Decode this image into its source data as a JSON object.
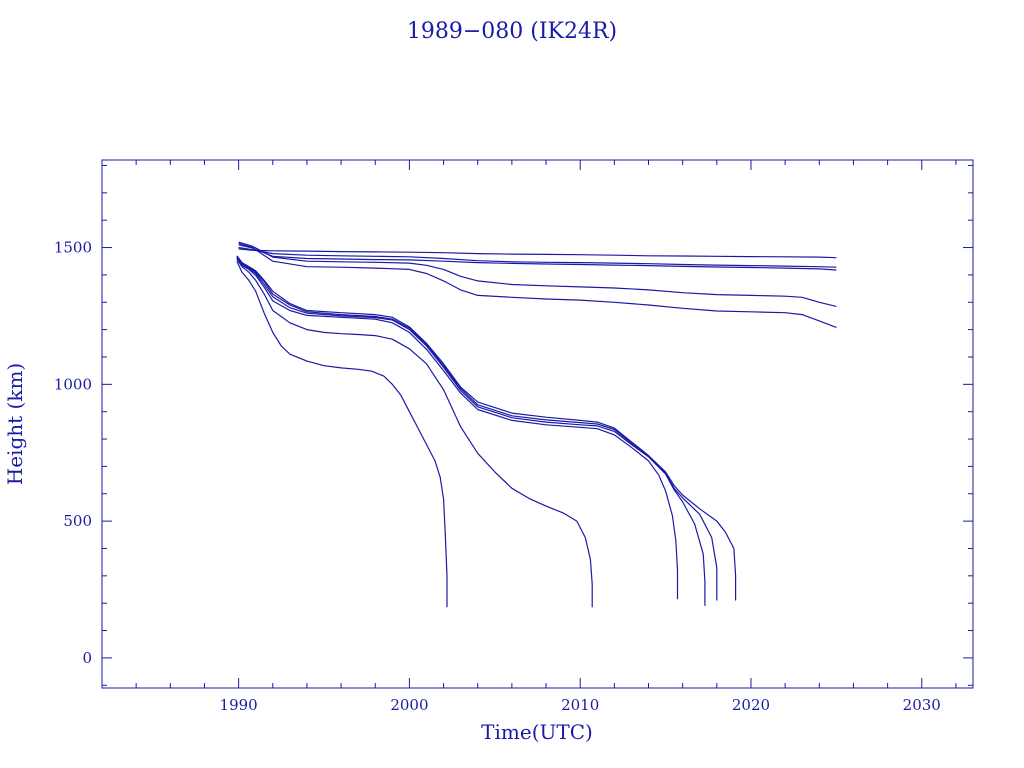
{
  "chart_data": {
    "type": "line",
    "title": "1989−080 (IK24R)",
    "xlabel": "Time(UTC)",
    "ylabel": "Height (km)",
    "xlim": [
      1982,
      2033
    ],
    "ylim": [
      -110,
      1820
    ],
    "x_ticks": [
      1990,
      2000,
      2010,
      2020,
      2030
    ],
    "y_ticks": [
      0,
      500,
      1000,
      1500
    ],
    "grid": false,
    "color": "#1a1aa6",
    "series": [
      {
        "x": [
          1990.0,
          1990.8,
          1992.0,
          1994.0,
          1996.0,
          1998.0,
          2000.0,
          2002.0,
          2004.0,
          2006.0,
          2008.0,
          2010.0,
          2012.0,
          2014.0,
          2016.0,
          2018.0,
          2020.0,
          2022.0,
          2024.0,
          2025.0
        ],
        "values": [
          1495,
          1490,
          1488,
          1487,
          1485,
          1484,
          1483,
          1481,
          1478,
          1476,
          1475,
          1474,
          1472,
          1470,
          1469,
          1468,
          1467,
          1466,
          1465,
          1463
        ]
      },
      {
        "x": [
          1990.0,
          1990.8,
          1992.0,
          1994.0,
          1996.0,
          1998.0,
          2000.0,
          2002.0,
          2004.0,
          2006.0,
          2008.0,
          2010.0,
          2012.0,
          2014.0,
          2016.0,
          2018.0,
          2020.0,
          2022.0,
          2024.0,
          2025.0
        ],
        "values": [
          1500,
          1492,
          1478,
          1472,
          1470,
          1468,
          1466,
          1460,
          1452,
          1448,
          1446,
          1445,
          1443,
          1441,
          1438,
          1436,
          1434,
          1432,
          1430,
          1428
        ]
      },
      {
        "x": [
          1990.0,
          1990.8,
          1992.0,
          1994.0,
          1996.0,
          1998.0,
          2000.0,
          2002.0,
          2004.0,
          2006.0,
          2008.0,
          2010.0,
          2012.0,
          2014.0,
          2016.0,
          2018.0,
          2020.0,
          2022.0,
          2024.0,
          2025.0
        ],
        "values": [
          1510,
          1498,
          1468,
          1460,
          1458,
          1456,
          1455,
          1450,
          1445,
          1442,
          1440,
          1438,
          1436,
          1434,
          1431,
          1429,
          1427,
          1425,
          1422,
          1418
        ]
      },
      {
        "x": [
          1990.0,
          1990.8,
          1992.0,
          1994.0,
          1996.0,
          1998.0,
          2000.0,
          2001.0,
          2002.0,
          2003.0,
          2004.0,
          2006.0,
          2008.0,
          2010.0,
          2012.0,
          2014.0,
          2016.0,
          2018.0,
          2020.0,
          2022.0,
          2023.0,
          2024.0,
          2025.0
        ],
        "values": [
          1520,
          1505,
          1465,
          1450,
          1448,
          1446,
          1443,
          1435,
          1420,
          1395,
          1378,
          1365,
          1360,
          1356,
          1352,
          1345,
          1335,
          1328,
          1325,
          1322,
          1318,
          1300,
          1285
        ]
      },
      {
        "x": [
          1990.0,
          1990.8,
          1992.0,
          1994.0,
          1996.0,
          1998.0,
          2000.0,
          2001.0,
          2002.0,
          2003.0,
          2004.0,
          2006.0,
          2008.0,
          2010.0,
          2012.0,
          2014.0,
          2016.0,
          2018.0,
          2020.0,
          2022.0,
          2023.0,
          2024.0,
          2025.0
        ],
        "values": [
          1515,
          1500,
          1450,
          1430,
          1428,
          1425,
          1420,
          1405,
          1378,
          1345,
          1325,
          1318,
          1312,
          1308,
          1300,
          1290,
          1278,
          1268,
          1265,
          1262,
          1255,
          1232,
          1208
        ]
      },
      {
        "x": [
          1989.9,
          1990.2,
          1990.6,
          1991.0,
          1991.5,
          1992.0,
          1993.0,
          1994.0,
          1996.0,
          1998.0,
          1999.0,
          2000.0,
          2001.0,
          2002.0,
          2003.0,
          2004.0,
          2006.0,
          2008.0,
          2010.0,
          2011.0,
          2012.0,
          2013.0,
          2014.0,
          2015.0,
          2015.5,
          2016.0,
          2017.0,
          2018.0,
          2018.5,
          2019.0,
          2019.1,
          2019.1
        ],
        "values": [
          1470,
          1445,
          1430,
          1415,
          1380,
          1340,
          1295,
          1270,
          1262,
          1255,
          1245,
          1210,
          1150,
          1075,
          990,
          935,
          895,
          880,
          868,
          862,
          840,
          790,
          740,
          680,
          630,
          595,
          545,
          500,
          460,
          400,
          300,
          210
        ]
      },
      {
        "x": [
          1989.9,
          1990.2,
          1990.6,
          1991.0,
          1991.5,
          1992.0,
          1993.0,
          1994.0,
          1996.0,
          1998.0,
          1999.0,
          2000.0,
          2001.0,
          2002.0,
          2003.0,
          2004.0,
          2006.0,
          2008.0,
          2010.0,
          2011.0,
          2012.0,
          2013.0,
          2014.0,
          2015.0,
          2015.5,
          2016.0,
          2017.0,
          2017.7,
          2018.0,
          2018.0
        ],
        "values": [
          1468,
          1442,
          1428,
          1410,
          1375,
          1330,
          1290,
          1265,
          1255,
          1248,
          1238,
          1205,
          1145,
          1068,
          985,
          925,
          885,
          870,
          860,
          855,
          835,
          785,
          738,
          675,
          620,
          585,
          525,
          440,
          330,
          210
        ]
      },
      {
        "x": [
          1989.9,
          1990.2,
          1990.6,
          1991.0,
          1991.5,
          1992.0,
          1993.0,
          1994.0,
          1996.0,
          1998.0,
          1999.0,
          2000.0,
          2001.0,
          2002.0,
          2003.0,
          2004.0,
          2006.0,
          2008.0,
          2010.0,
          2011.0,
          2012.0,
          2013.0,
          2014.0,
          2015.0,
          2015.5,
          2016.0,
          2016.7,
          2017.2,
          2017.3,
          2017.3
        ],
        "values": [
          1465,
          1440,
          1425,
          1405,
          1365,
          1320,
          1280,
          1260,
          1250,
          1244,
          1235,
          1200,
          1140,
          1062,
          978,
          918,
          878,
          862,
          852,
          848,
          828,
          780,
          735,
          672,
          615,
          570,
          490,
          380,
          280,
          190
        ]
      },
      {
        "x": [
          1989.9,
          1990.2,
          1990.6,
          1991.0,
          1991.5,
          1992.0,
          1993.0,
          1994.0,
          1996.0,
          1998.0,
          1999.0,
          2000.0,
          2001.0,
          2002.0,
          2003.0,
          2004.0,
          2006.0,
          2008.0,
          2010.0,
          2011.0,
          2012.0,
          2013.0,
          2014.0,
          2014.6,
          2015.0,
          2015.4,
          2015.6,
          2015.7,
          2015.7
        ],
        "values": [
          1462,
          1435,
          1420,
          1398,
          1355,
          1305,
          1270,
          1252,
          1245,
          1238,
          1225,
          1190,
          1128,
          1050,
          968,
          908,
          868,
          852,
          843,
          838,
          815,
          770,
          720,
          668,
          610,
          520,
          430,
          320,
          215
        ]
      },
      {
        "x": [
          1989.9,
          1990.2,
          1990.6,
          1991.0,
          1991.5,
          1992.0,
          1993.0,
          1994.0,
          1995.0,
          1996.0,
          1997.0,
          1998.0,
          1999.0,
          2000.0,
          2001.0,
          2002.0,
          2003.0,
          2004.0,
          2005.0,
          2006.0,
          2007.0,
          2008.0,
          2009.0,
          2009.8,
          2010.3,
          2010.6,
          2010.7,
          2010.7
        ],
        "values": [
          1458,
          1430,
          1410,
          1380,
          1330,
          1270,
          1225,
          1200,
          1190,
          1185,
          1182,
          1178,
          1165,
          1130,
          1075,
          980,
          845,
          748,
          680,
          620,
          583,
          555,
          530,
          500,
          440,
          360,
          270,
          185
        ]
      },
      {
        "x": [
          1989.9,
          1990.2,
          1990.6,
          1991.0,
          1991.5,
          1992.0,
          1992.5,
          1993.0,
          1994.0,
          1995.0,
          1996.0,
          1997.0,
          1997.8,
          1998.5,
          1999.0,
          1999.5,
          2000.0,
          2000.5,
          2001.0,
          2001.5,
          2001.8,
          2002.0,
          2002.1,
          2002.2,
          2002.2
        ],
        "values": [
          1450,
          1410,
          1380,
          1340,
          1260,
          1190,
          1140,
          1110,
          1085,
          1068,
          1060,
          1055,
          1048,
          1030,
          1000,
          960,
          900,
          840,
          780,
          720,
          660,
          580,
          450,
          300,
          185
        ]
      }
    ]
  }
}
